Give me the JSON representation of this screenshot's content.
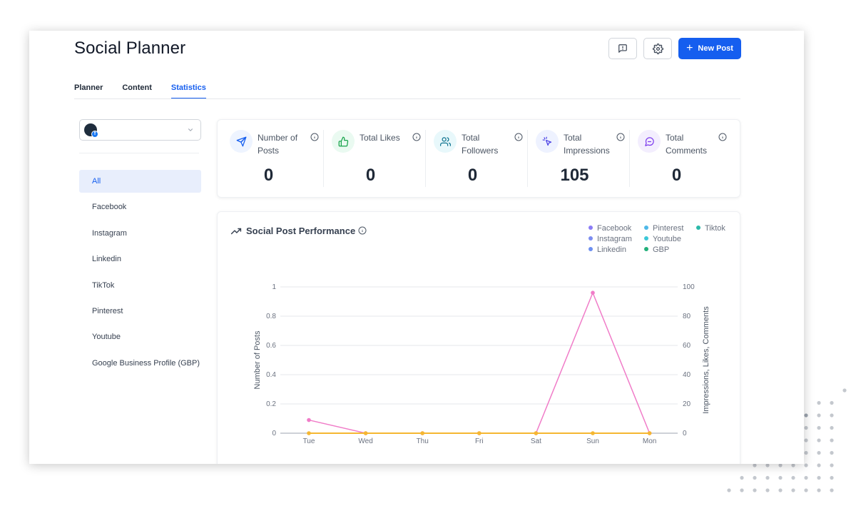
{
  "header": {
    "title": "Social Planner",
    "new_post_label": "New Post"
  },
  "tabs": [
    {
      "label": "Planner"
    },
    {
      "label": "Content"
    },
    {
      "label": "Statistics",
      "active": true
    }
  ],
  "sidebar": {
    "items": [
      {
        "label": "All",
        "active": true
      },
      {
        "label": "Facebook"
      },
      {
        "label": "Instagram"
      },
      {
        "label": "Linkedin"
      },
      {
        "label": "TikTok"
      },
      {
        "label": "Pinterest"
      },
      {
        "label": "Youtube"
      },
      {
        "label": "Google Business Profile (GBP)"
      }
    ]
  },
  "stats": [
    {
      "label": "Number of Posts",
      "value": "0",
      "icon": "send-icon",
      "bg": "#eef4ff",
      "color": "#155eef"
    },
    {
      "label": "Total Likes",
      "value": "0",
      "icon": "thumbs-up-icon",
      "bg": "#eafaf1",
      "color": "#16a34a"
    },
    {
      "label": "Total Followers",
      "value": "0",
      "icon": "users-icon",
      "bg": "#e8f8fb",
      "color": "#0e7490"
    },
    {
      "label": "Total Impressions",
      "value": "105",
      "icon": "cursor-click-icon",
      "bg": "#eef2ff",
      "color": "#4f46e5"
    },
    {
      "label": "Total Comments",
      "value": "0",
      "icon": "message-icon",
      "bg": "#f3eefe",
      "color": "#7c3aed"
    }
  ],
  "performance": {
    "title": "Social Post Performance",
    "legend": [
      {
        "name": "Facebook",
        "color": "#8b7cf6"
      },
      {
        "name": "Instagram",
        "color": "#7c8cf0"
      },
      {
        "name": "Linkedin",
        "color": "#6d8ff0"
      },
      {
        "name": "Pinterest",
        "color": "#4fb8e8"
      },
      {
        "name": "Youtube",
        "color": "#3cc8d8"
      },
      {
        "name": "GBP",
        "color": "#22b07a"
      },
      {
        "name": "Tiktok",
        "color": "#2bb9a9"
      }
    ]
  },
  "chart_data": {
    "type": "line",
    "categories": [
      "Tue",
      "Wed",
      "Thu",
      "Fri",
      "Sat",
      "Sun",
      "Mon"
    ],
    "ylabel": "Number of Posts",
    "y2label": "Impressions, Likes, Comments",
    "ylim": [
      0,
      1
    ],
    "y2lim": [
      0,
      100
    ],
    "yticks": [
      "0",
      "0.2",
      "0.4",
      "0.6",
      "0.8",
      "1"
    ],
    "y2ticks": [
      "0",
      "20",
      "40",
      "60",
      "80",
      "100"
    ],
    "series": [
      {
        "axis": "right",
        "color": "#f07cc8",
        "values": [
          9,
          0,
          0,
          0,
          0,
          96,
          0
        ]
      },
      {
        "axis": "left",
        "color": "#f5b731",
        "values": [
          0,
          0,
          0,
          0,
          0,
          0,
          0
        ]
      }
    ],
    "grid": true
  }
}
